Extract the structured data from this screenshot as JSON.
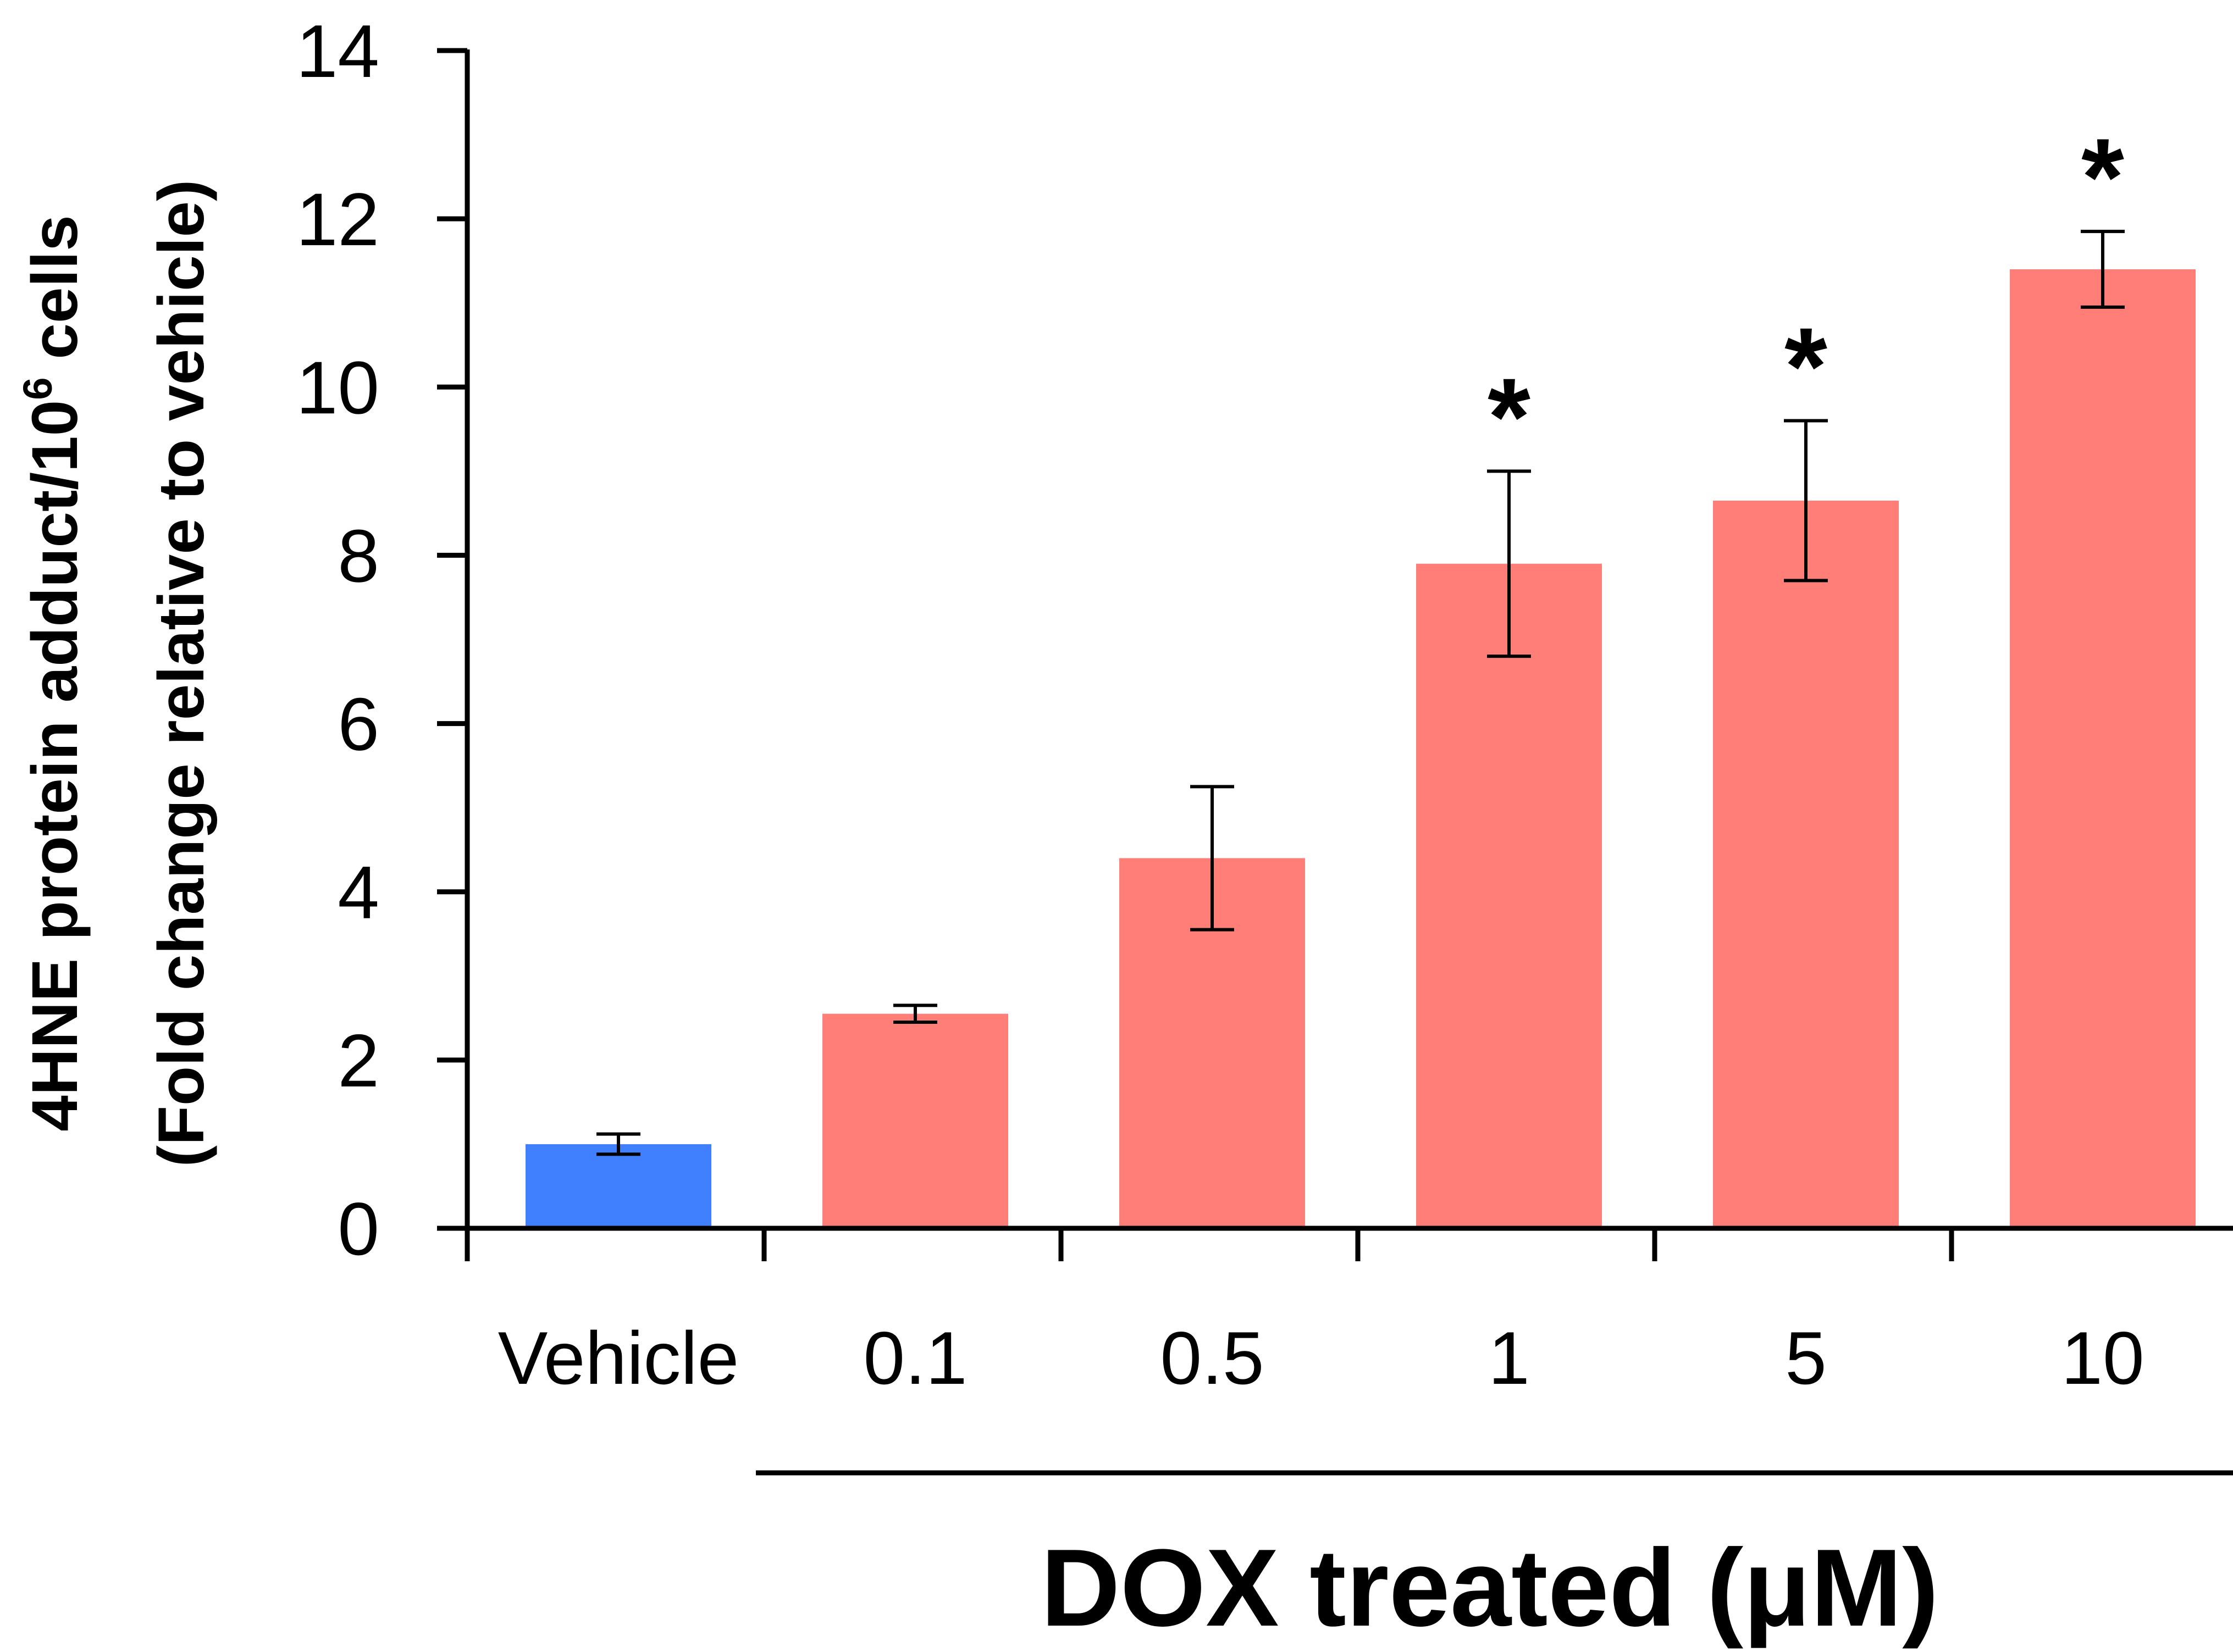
{
  "chart_data": {
    "type": "bar",
    "categories": [
      "Vehicle",
      "0.1",
      "0.5",
      "1",
      "5",
      "10"
    ],
    "values": [
      1.0,
      2.55,
      4.4,
      7.9,
      8.65,
      11.4
    ],
    "errors": [
      0.12,
      0.1,
      0.85,
      1.1,
      0.95,
      0.45
    ],
    "significant": [
      false,
      false,
      false,
      true,
      true,
      true
    ],
    "significance_marker": "*",
    "bar_colors": [
      "#4080FF",
      "#FF7F78",
      "#FF7F78",
      "#FF7F78",
      "#FF7F78",
      "#FF7F78"
    ],
    "ylabel_line1": "4HNE protein adduct/10",
    "ylabel_superscript": "6",
    "ylabel_line1_suffix": " cells",
    "ylabel_line2": "(Fold change relative to vehicle)",
    "group_label": "DOX treated (μM)",
    "ylim": [
      0,
      14
    ],
    "yticks": [
      "0",
      "2",
      "4",
      "6",
      "8",
      "10",
      "12",
      "14"
    ],
    "grid": false,
    "legend": "none"
  }
}
